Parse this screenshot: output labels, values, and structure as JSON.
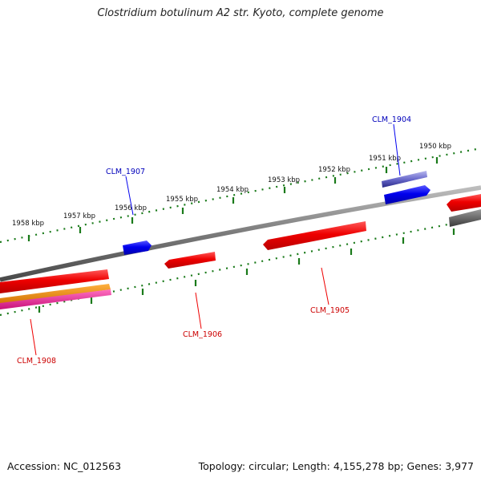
{
  "title": "Clostridium botulinum A2 str. Kyoto, complete genome",
  "footer": {
    "accession": "Accession: NC_012563",
    "summary": "Topology: circular; Length: 4,155,278 bp; Genes: 3,977"
  },
  "tick_labels": [
    "1950 kbp",
    "1951 kbp",
    "1952 kbp",
    "1953 kbp",
    "1954 kbp",
    "1955 kbp",
    "1956 kbp",
    "1957 kbp",
    "1958 kbp"
  ],
  "gene_labels": {
    "clm_1904": "CLM_1904",
    "clm_1905": "CLM_1905",
    "clm_1906": "CLM_1906",
    "clm_1907": "CLM_1907",
    "clm_1908": "CLM_1908"
  },
  "colors": {
    "forward_gene": "#0000ee",
    "reverse_gene": "#ee0000",
    "gene_forward_label": "#0000bb",
    "gene_reverse_label": "#cc0000",
    "tick": "#1a7a1a",
    "backbone": "#7a7a7a",
    "orange_feature": "#f08a00",
    "magenta_feature": "#ee2090",
    "gray_feature": "#666666",
    "purple_feature": "#6a6acc"
  }
}
